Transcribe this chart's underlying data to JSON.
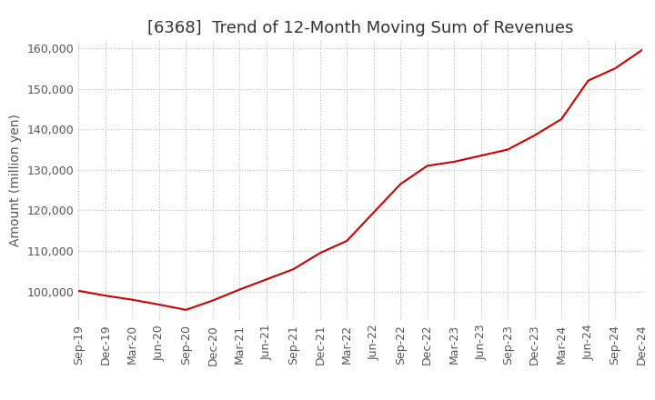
{
  "title": "[6368]  Trend of 12-Month Moving Sum of Revenues",
  "ylabel": "Amount (million yen)",
  "line_color": "#cc0000",
  "background_color": "#ffffff",
  "plot_bg_color": "#ffffff",
  "grid_color": "#bbbbbb",
  "x_labels": [
    "Sep-19",
    "Dec-19",
    "Mar-20",
    "Jun-20",
    "Sep-20",
    "Dec-20",
    "Mar-21",
    "Jun-21",
    "Sep-21",
    "Dec-21",
    "Mar-22",
    "Jun-22",
    "Sep-22",
    "Dec-22",
    "Mar-23",
    "Jun-23",
    "Sep-23",
    "Dec-23",
    "Mar-24",
    "Jun-24",
    "Sep-24",
    "Dec-24"
  ],
  "y_values": [
    100200,
    99000,
    98000,
    96800,
    95500,
    97800,
    100500,
    103000,
    105500,
    109500,
    112500,
    119500,
    126500,
    131000,
    132000,
    133500,
    135000,
    138500,
    142500,
    152000,
    155000,
    159500
  ],
  "ylim": [
    93000,
    162000
  ],
  "yticks": [
    100000,
    110000,
    120000,
    130000,
    140000,
    150000,
    160000
  ],
  "title_fontsize": 13,
  "label_fontsize": 10,
  "tick_fontsize": 9
}
